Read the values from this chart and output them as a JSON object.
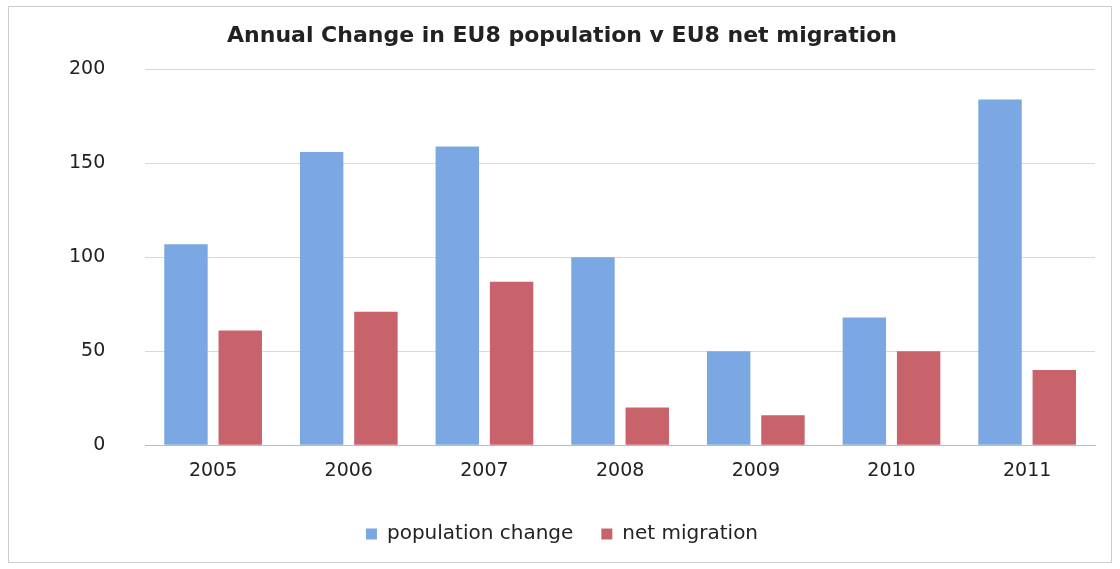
{
  "chart_data": {
    "type": "bar",
    "title": "Annual Change in EU8 population v EU8 net migration",
    "categories": [
      "2005",
      "2006",
      "2007",
      "2008",
      "2009",
      "2010",
      "2011"
    ],
    "series": [
      {
        "name": "population change",
        "color": "#7ba7e3",
        "values": [
          107,
          156,
          159,
          100,
          50,
          68,
          184
        ]
      },
      {
        "name": "net migration",
        "color": "#c8626b",
        "values": [
          61,
          71,
          87,
          20,
          16,
          50,
          40
        ]
      }
    ],
    "ylim": [
      0,
      200
    ],
    "yticks": [
      0,
      50,
      100,
      150,
      200
    ],
    "grid": "y",
    "legend": "bottom"
  }
}
